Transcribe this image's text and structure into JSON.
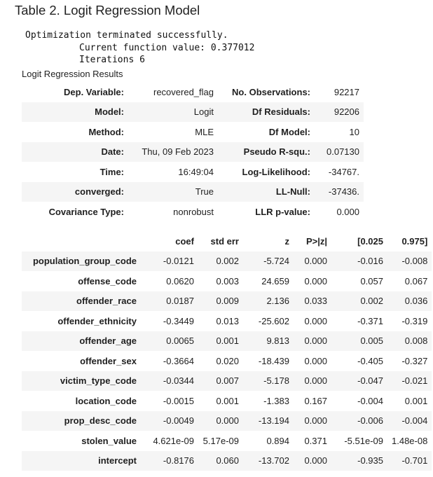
{
  "title": "Table 2. Logit Regression Model",
  "console": [
    "Optimization terminated successfully.",
    "Current function value: 0.377012",
    "Iterations 6"
  ],
  "caption": "Logit Regression Results",
  "summary_rows": [
    [
      "Dep. Variable:",
      "recovered_flag",
      "No. Observations:",
      "92217"
    ],
    [
      "Model:",
      "Logit",
      "Df Residuals:",
      "92206"
    ],
    [
      "Method:",
      "MLE",
      "Df Model:",
      "10"
    ],
    [
      "Date:",
      "Thu, 09 Feb 2023",
      "Pseudo R-squ.:",
      "0.07130"
    ],
    [
      "Time:",
      "16:49:04",
      "Log-Likelihood:",
      "-34767."
    ],
    [
      "converged:",
      "True",
      "LL-Null:",
      "-37436."
    ],
    [
      "Covariance Type:",
      "nonrobust",
      "LLR p-value:",
      "0.000"
    ]
  ],
  "coef_headers": [
    "",
    "coef",
    "std err",
    "z",
    "P>|z|",
    "[0.025",
    "0.975]"
  ],
  "coef_rows": [
    [
      "population_group_code",
      "-0.0121",
      "0.002",
      "-5.724",
      "0.000",
      "-0.016",
      "-0.008"
    ],
    [
      "offense_code",
      "0.0620",
      "0.003",
      "24.659",
      "0.000",
      "0.057",
      "0.067"
    ],
    [
      "offender_race",
      "0.0187",
      "0.009",
      "2.136",
      "0.033",
      "0.002",
      "0.036"
    ],
    [
      "offender_ethnicity",
      "-0.3449",
      "0.013",
      "-25.602",
      "0.000",
      "-0.371",
      "-0.319"
    ],
    [
      "offender_age",
      "0.0065",
      "0.001",
      "9.813",
      "0.000",
      "0.005",
      "0.008"
    ],
    [
      "offender_sex",
      "-0.3664",
      "0.020",
      "-18.439",
      "0.000",
      "-0.405",
      "-0.327"
    ],
    [
      "victim_type_code",
      "-0.0344",
      "0.007",
      "-5.178",
      "0.000",
      "-0.047",
      "-0.021"
    ],
    [
      "location_code",
      "-0.0015",
      "0.001",
      "-1.383",
      "0.167",
      "-0.004",
      "0.001"
    ],
    [
      "prop_desc_code",
      "-0.0049",
      "0.000",
      "-13.194",
      "0.000",
      "-0.006",
      "-0.004"
    ],
    [
      "stolen_value",
      "4.621e-09",
      "5.17e-09",
      "0.894",
      "0.371",
      "-5.51e-09",
      "1.48e-08"
    ],
    [
      "intercept",
      "-0.8176",
      "0.060",
      "-13.702",
      "0.000",
      "-0.935",
      "-0.701"
    ]
  ]
}
